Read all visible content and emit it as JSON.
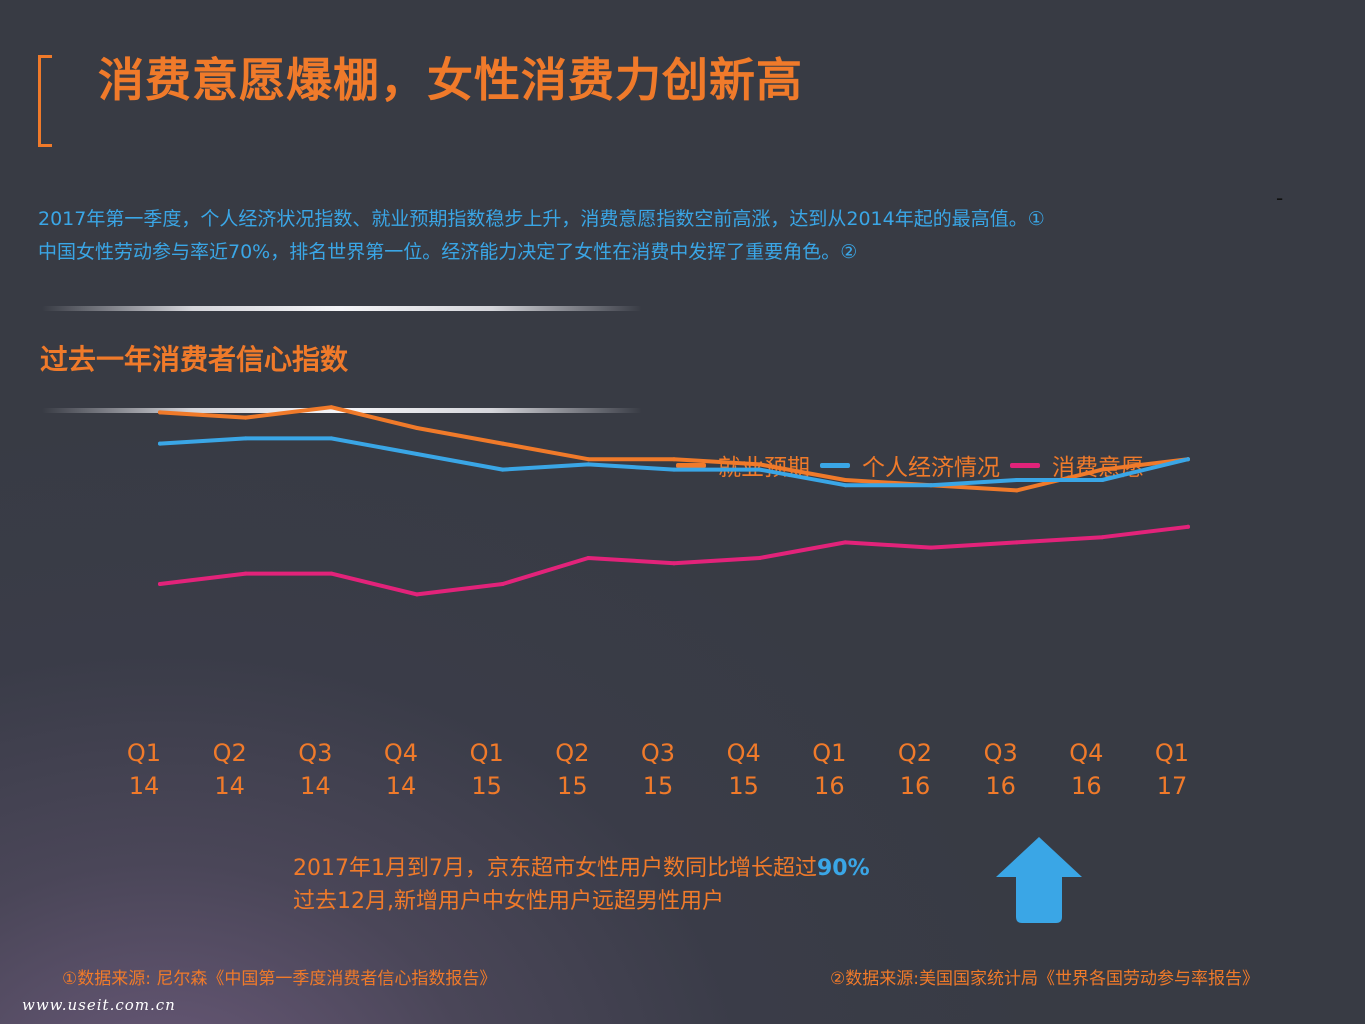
{
  "header": {
    "title": "消费意愿爆棚，女性消费力创新高",
    "mark": "-"
  },
  "intro": {
    "line1": "2017年第一季度，个人经济状况指数、就业预期指数稳步上升，消费意愿指数空前高涨，达到从2014年起的最高值。①",
    "line2": "中国女性劳动参与率近70%，排名世界第一位。经济能力决定了女性在消费中发挥了重要角色。②"
  },
  "section": {
    "subtitle": "过去一年消费者信心指数"
  },
  "legend": {
    "employment": "就业预期",
    "personal": "个人经济情况",
    "consumption": "消费意愿"
  },
  "colors": {
    "orange": "#f07a2a",
    "blue": "#3aa6e6",
    "magenta": "#e2237a"
  },
  "chart_data": {
    "type": "line",
    "title": "过去一年消费者信心指数",
    "categories": [
      "Q1 14",
      "Q2 14",
      "Q3 14",
      "Q4 14",
      "Q1 15",
      "Q2 15",
      "Q3 15",
      "Q4 15",
      "Q1 16",
      "Q2 16",
      "Q3 16",
      "Q4 16",
      "Q1 17"
    ],
    "category_lines": [
      [
        "Q1",
        "14"
      ],
      [
        "Q2",
        "14"
      ],
      [
        "Q3",
        "14"
      ],
      [
        "Q4",
        "14"
      ],
      [
        "Q1",
        "15"
      ],
      [
        "Q2",
        "15"
      ],
      [
        "Q3",
        "15"
      ],
      [
        "Q4",
        "15"
      ],
      [
        "Q1",
        "16"
      ],
      [
        "Q2",
        "16"
      ],
      [
        "Q3",
        "16"
      ],
      [
        "Q4",
        "16"
      ],
      [
        "Q1",
        "17"
      ]
    ],
    "ylim": [
      0,
      100
    ],
    "grid": false,
    "series": [
      {
        "name": "就业预期",
        "color": "#f07a2a",
        "values": [
          88,
          87,
          89,
          85,
          82,
          79,
          79,
          78,
          75,
          74,
          73,
          77,
          79
        ]
      },
      {
        "name": "个人经济情况",
        "color": "#3aa6e6",
        "values": [
          82,
          83,
          83,
          80,
          77,
          78,
          77,
          77,
          74,
          74,
          75,
          75,
          79
        ]
      },
      {
        "name": "消费意愿",
        "color": "#e2237a",
        "values": [
          55,
          57,
          57,
          53,
          55,
          60,
          59,
          60,
          63,
          62,
          63,
          64,
          66
        ]
      }
    ]
  },
  "callout": {
    "line1_prefix": "2017年1月到7月，京东超市女性用户数同比增长超过",
    "line1_highlight": "90%",
    "line2": "过去12月,新增用户中女性用户远超男性用户"
  },
  "footnotes": {
    "source1": "①数据来源: 尼尔森《中国第一季度消费者信心指数报告》",
    "source2": "②数据来源:美国国家统计局《世界各国劳动参与率报告》"
  },
  "watermark": "www.useit.com.cn"
}
